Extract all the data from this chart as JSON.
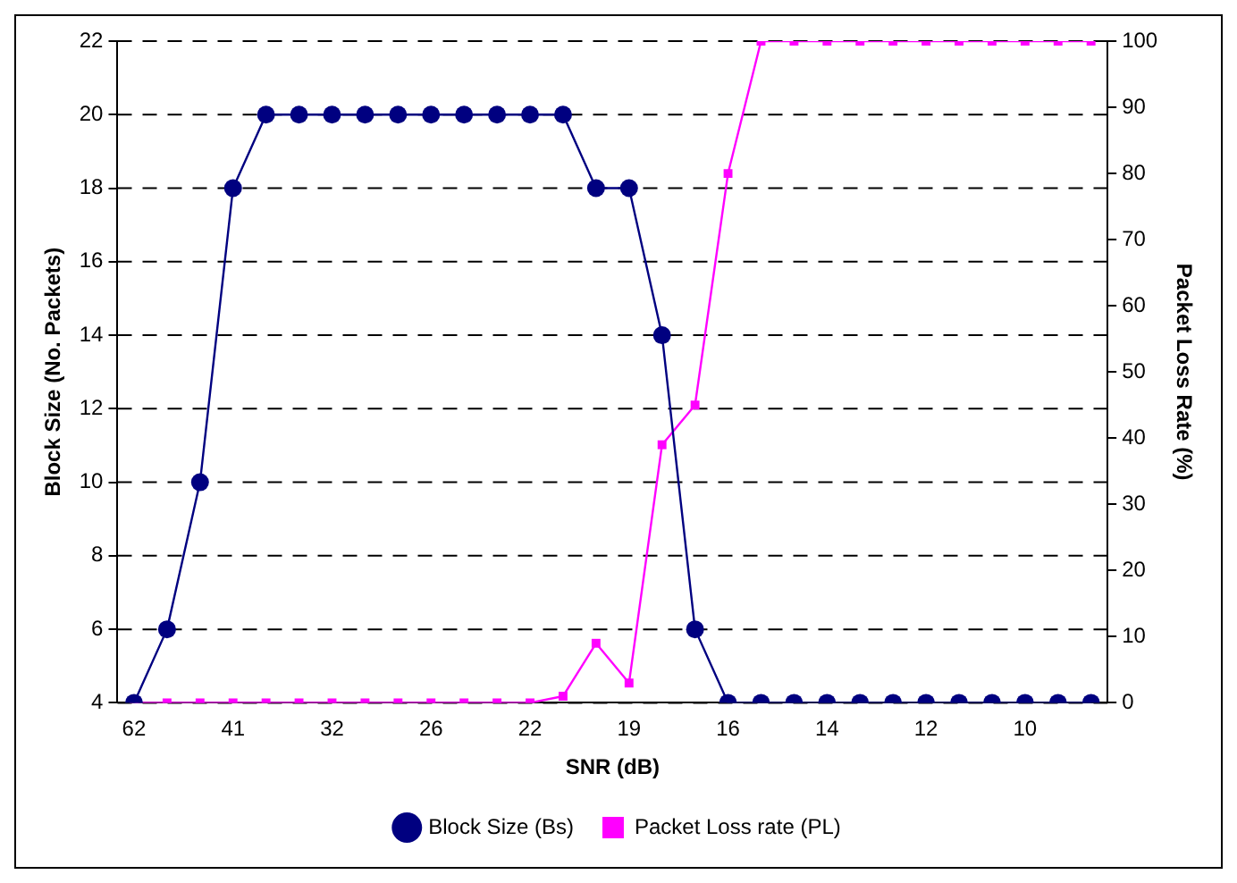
{
  "chart_data": {
    "type": "line",
    "xlabel": "SNR (dB)",
    "ylabel": "Block Size (No. Packets)",
    "y2label": "Packet Loss Rate (%)",
    "categories": [
      "62",
      null,
      null,
      "41",
      null,
      null,
      "32",
      null,
      null,
      "26",
      null,
      null,
      "22",
      null,
      null,
      "19",
      null,
      null,
      "16",
      null,
      null,
      "14",
      null,
      null,
      "12",
      null,
      null,
      "10",
      null,
      null
    ],
    "series": [
      {
        "name": "Block Size (Bs)",
        "color": "#000080",
        "marker": "circle",
        "values": [
          4,
          6,
          10,
          18,
          20,
          20,
          20,
          20,
          20,
          20,
          20,
          20,
          20,
          20,
          18,
          18,
          14,
          6,
          4,
          4,
          4,
          4,
          4,
          4,
          4,
          4,
          4,
          4,
          4,
          4
        ]
      },
      {
        "name": "Packet Loss rate (PL)",
        "color": "#ff00ff",
        "marker": "square",
        "axis": "y2",
        "values": [
          0,
          0,
          0,
          0,
          0,
          0,
          0,
          0,
          0,
          0,
          0,
          0,
          0,
          1,
          9,
          3,
          39,
          45,
          80,
          100,
          100,
          100,
          100,
          100,
          100,
          100,
          100,
          100,
          100,
          100
        ]
      }
    ],
    "ylim": [
      4,
      22
    ],
    "yticks": [
      4,
      6,
      8,
      10,
      12,
      14,
      16,
      18,
      20,
      22
    ],
    "y2lim": [
      0,
      100
    ],
    "y2ticks": [
      0,
      10,
      20,
      30,
      40,
      50,
      60,
      70,
      80,
      90,
      100
    ],
    "grid": "y",
    "legend": "bottom",
    "line_style": "solid"
  }
}
